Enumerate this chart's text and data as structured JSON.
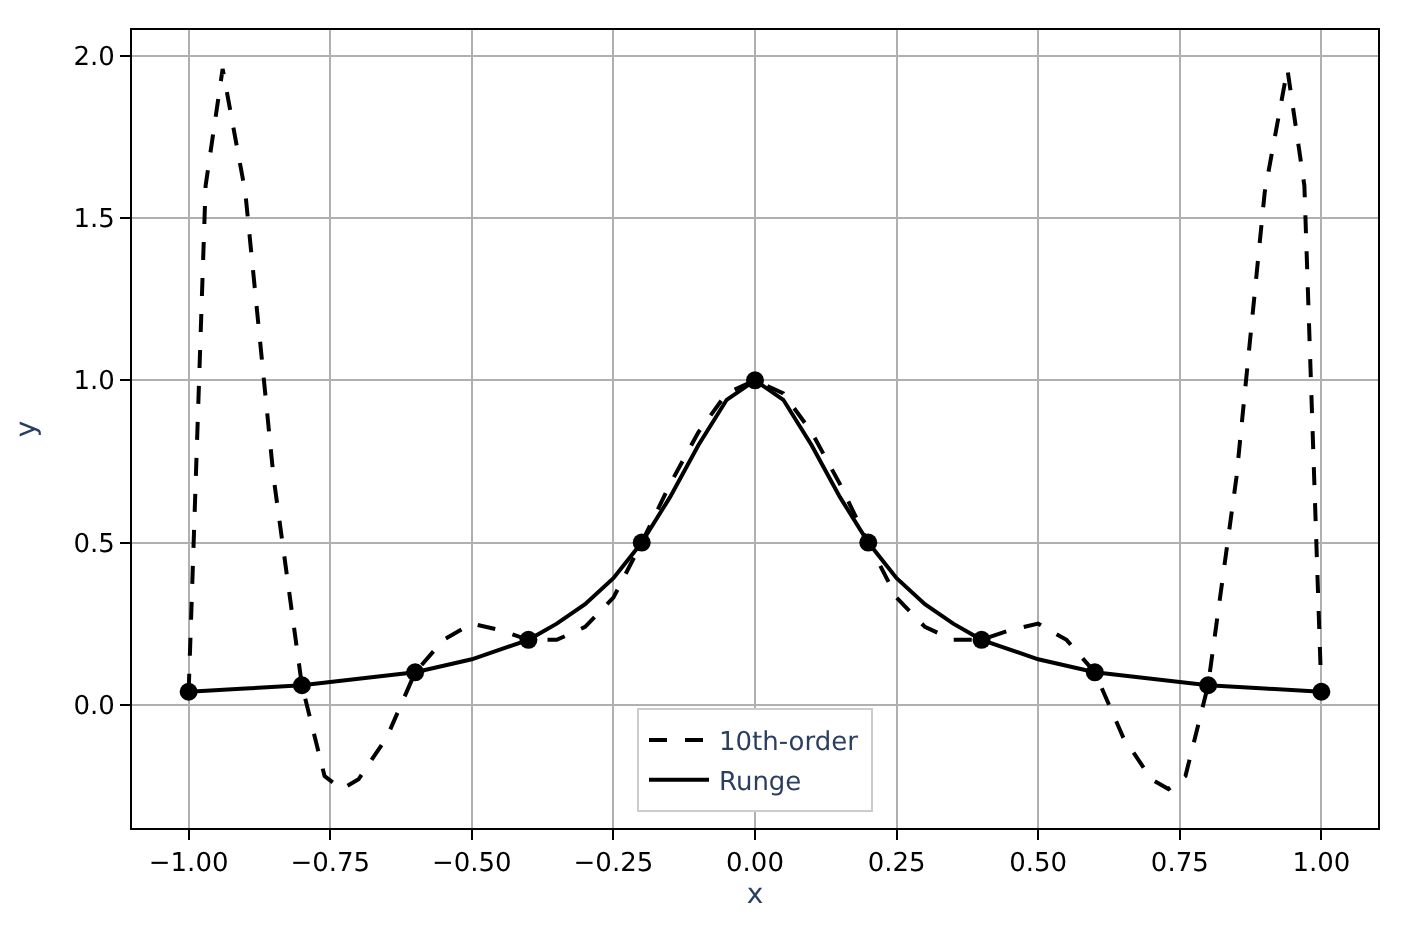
{
  "chart_data": {
    "type": "line",
    "xlabel": "x",
    "ylabel": "y",
    "xlim": [
      -1.1,
      1.1
    ],
    "ylim": [
      -0.38,
      2.08
    ],
    "xticks": [
      {
        "value": -1,
        "label": "−1.00"
      },
      {
        "value": -0.75,
        "label": "−0.75"
      },
      {
        "value": -0.5,
        "label": "−0.50"
      },
      {
        "value": -0.25,
        "label": "−0.25"
      },
      {
        "value": 0,
        "label": "0.00"
      },
      {
        "value": 0.25,
        "label": "0.25"
      },
      {
        "value": 0.5,
        "label": "0.50"
      },
      {
        "value": 0.75,
        "label": "0.75"
      },
      {
        "value": 1,
        "label": "1.00"
      }
    ],
    "yticks": [
      {
        "value": 0,
        "label": "0.0"
      },
      {
        "value": 0.5,
        "label": "0.5"
      },
      {
        "value": 1,
        "label": "1.0"
      },
      {
        "value": 1.5,
        "label": "1.5"
      },
      {
        "value": 2,
        "label": "2.0"
      }
    ],
    "grid": true,
    "legend": "bottom",
    "series": [
      {
        "name": "10th-order",
        "color": "#000000",
        "line_style": "dashed",
        "marker": "none",
        "x": [
          -1,
          -0.97,
          -0.94,
          -0.9,
          -0.85,
          -0.8,
          -0.76,
          -0.73,
          -0.7,
          -0.65,
          -0.6,
          -0.55,
          -0.5,
          -0.45,
          -0.4,
          -0.35,
          -0.3,
          -0.25,
          -0.2,
          -0.15,
          -0.1,
          -0.05,
          0,
          0.05,
          0.1,
          0.15,
          0.2,
          0.25,
          0.3,
          0.35,
          0.4,
          0.45,
          0.5,
          0.55,
          0.6,
          0.65,
          0.7,
          0.73,
          0.76,
          0.8,
          0.85,
          0.9,
          0.94,
          0.97,
          1
        ],
        "values": [
          0.04,
          1.6,
          1.96,
          1.58,
          0.7,
          0.06,
          -0.22,
          -0.26,
          -0.23,
          -0.1,
          0.1,
          0.2,
          0.25,
          0.23,
          0.2,
          0.2,
          0.24,
          0.33,
          0.5,
          0.68,
          0.84,
          0.96,
          1,
          0.96,
          0.84,
          0.68,
          0.5,
          0.33,
          0.24,
          0.2,
          0.2,
          0.23,
          0.25,
          0.2,
          0.1,
          -0.1,
          -0.23,
          -0.26,
          -0.22,
          0.06,
          0.7,
          1.58,
          1.96,
          1.6,
          0.04
        ]
      },
      {
        "name": "Runge",
        "color": "#000000",
        "line_style": "solid",
        "marker": "none",
        "x": [
          -1,
          -0.9,
          -0.8,
          -0.7,
          -0.6,
          -0.5,
          -0.4,
          -0.35,
          -0.3,
          -0.25,
          -0.2,
          -0.15,
          -0.1,
          -0.05,
          0,
          0.05,
          0.1,
          0.15,
          0.2,
          0.25,
          0.3,
          0.35,
          0.4,
          0.5,
          0.6,
          0.7,
          0.8,
          0.9,
          1
        ],
        "values": [
          0.04,
          0.05,
          0.06,
          0.08,
          0.1,
          0.14,
          0.2,
          0.25,
          0.31,
          0.39,
          0.5,
          0.64,
          0.8,
          0.94,
          1,
          0.94,
          0.8,
          0.64,
          0.5,
          0.39,
          0.31,
          0.25,
          0.2,
          0.14,
          0.1,
          0.08,
          0.06,
          0.05,
          0.04
        ]
      },
      {
        "type": "scatter",
        "color": "#000000",
        "marker": "circle",
        "x": [
          -1,
          -0.8,
          -0.6,
          -0.4,
          -0.2,
          0,
          0.2,
          0.4,
          0.6,
          0.8,
          1
        ],
        "values": [
          0.04,
          0.06,
          0.1,
          0.2,
          0.5,
          1,
          0.5,
          0.2,
          0.1,
          0.06,
          0.04
        ]
      }
    ]
  }
}
